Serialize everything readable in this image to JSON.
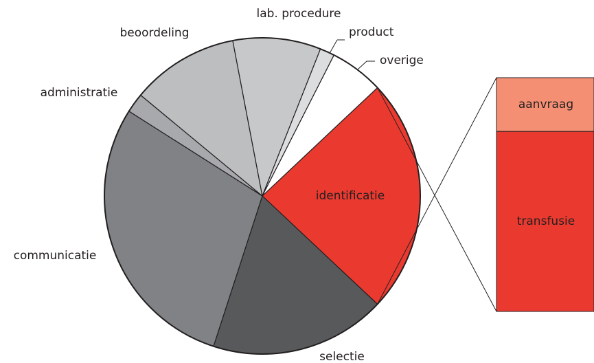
{
  "chart_data": {
    "type": "pie",
    "categories": [
      "identificatie",
      "selectie",
      "communicatie",
      "administratie",
      "beoordeling",
      "lab. procedure",
      "product",
      "overige"
    ],
    "values": [
      24,
      18,
      29,
      2,
      11,
      9,
      1.5,
      5.5
    ],
    "colors": [
      "#ea3a30",
      "#58595b",
      "#808285",
      "#a7a9ac",
      "#bcbec0",
      "#c7c8ca",
      "#dcdddf",
      "#ffffff"
    ],
    "breakdown": {
      "categories": [
        "aanvraag",
        "transfusie"
      ],
      "values": [
        23,
        77
      ],
      "colors": [
        "#f58f74",
        "#ea3a30"
      ]
    }
  }
}
